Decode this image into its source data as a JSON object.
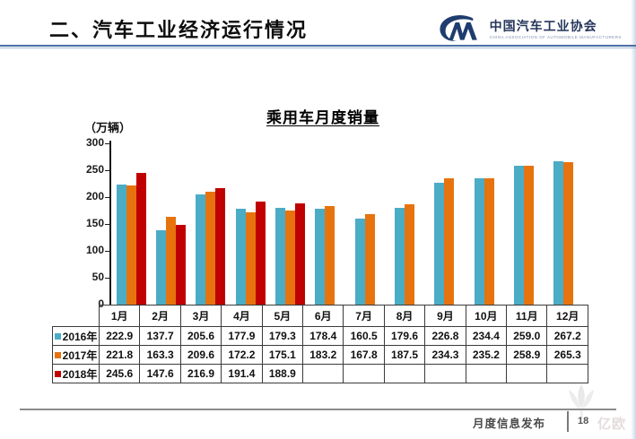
{
  "header": {
    "title": "二、汽车工业经济运行情况",
    "logo": {
      "org_cn": "中国汽车工业协会",
      "org_en": "CHINA ASSOCIATION OF AUTOMOBILE MANUFACTURERS"
    }
  },
  "chart_data": {
    "type": "bar",
    "title": "乘用车月度销量",
    "unit_label": "（万辆）",
    "categories": [
      "1月",
      "2月",
      "3月",
      "4月",
      "5月",
      "6月",
      "7月",
      "8月",
      "9月",
      "10月",
      "11月",
      "12月"
    ],
    "series": [
      {
        "name": "2016年",
        "color": "#4BACC6",
        "values": [
          "222.9",
          "137.7",
          "205.6",
          "177.9",
          "179.3",
          "178.4",
          "160.5",
          "179.6",
          "226.8",
          "234.4",
          "259.0",
          "267.2"
        ]
      },
      {
        "name": "2017年",
        "color": "#E6730E",
        "values": [
          "221.8",
          "163.3",
          "209.6",
          "172.2",
          "175.1",
          "183.2",
          "167.8",
          "187.5",
          "234.3",
          "235.2",
          "258.9",
          "265.3"
        ]
      },
      {
        "name": "2018年",
        "color": "#C00000",
        "values": [
          "245.6",
          "147.6",
          "216.9",
          "191.4",
          "188.9",
          "",
          "",
          "",
          "",
          "",
          "",
          ""
        ]
      }
    ],
    "ylim": [
      0,
      300
    ],
    "yticks": [
      0,
      50,
      100,
      150,
      200,
      250,
      300
    ],
    "grid": false,
    "legend_position": "table-rows"
  },
  "footer": {
    "label": "月度信息发布",
    "page_number": "18",
    "watermark": "亿欧"
  },
  "colors": {
    "header_rule": "#4a6fa5",
    "axis": "#1a1a1a",
    "logo_navy": "#1e3c6e"
  }
}
